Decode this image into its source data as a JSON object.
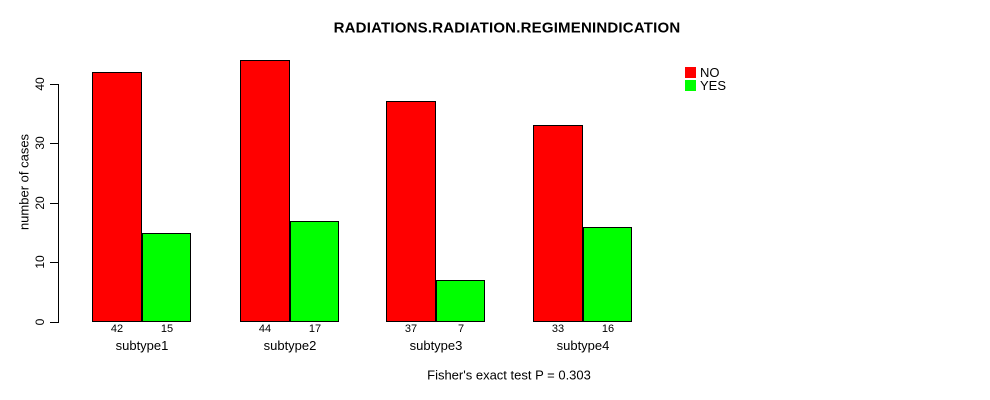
{
  "title": "RADIATIONS.RADIATION.REGIMENINDICATION",
  "y_axis_label": "number of cases",
  "footer_note": "Fisher's exact test P = 0.303",
  "legend": {
    "position": "top-right",
    "items": [
      {
        "label": "NO",
        "color": "#ff0000"
      },
      {
        "label": "YES",
        "color": "#00ff00"
      }
    ]
  },
  "chart_data": {
    "type": "bar",
    "title": "RADIATIONS.RADIATION.REGIMENINDICATION",
    "categories": [
      "subtype1",
      "subtype2",
      "subtype3",
      "subtype4"
    ],
    "series": [
      {
        "name": "NO",
        "color": "#ff0000",
        "values": [
          42,
          44,
          37,
          33
        ]
      },
      {
        "name": "YES",
        "color": "#00ff00",
        "values": [
          15,
          17,
          7,
          16
        ]
      }
    ],
    "bar_value_labels": [
      [
        "42",
        "15"
      ],
      [
        "44",
        "17"
      ],
      [
        "37",
        "7"
      ],
      [
        "33",
        "16"
      ]
    ],
    "xlabel": "",
    "ylabel": "number of cases",
    "ylim": [
      0,
      40
    ],
    "yticks": [
      0,
      10,
      20,
      30,
      40
    ],
    "grid": false,
    "legend_position": "top-right",
    "annotation": "Fisher's exact test P = 0.303"
  }
}
